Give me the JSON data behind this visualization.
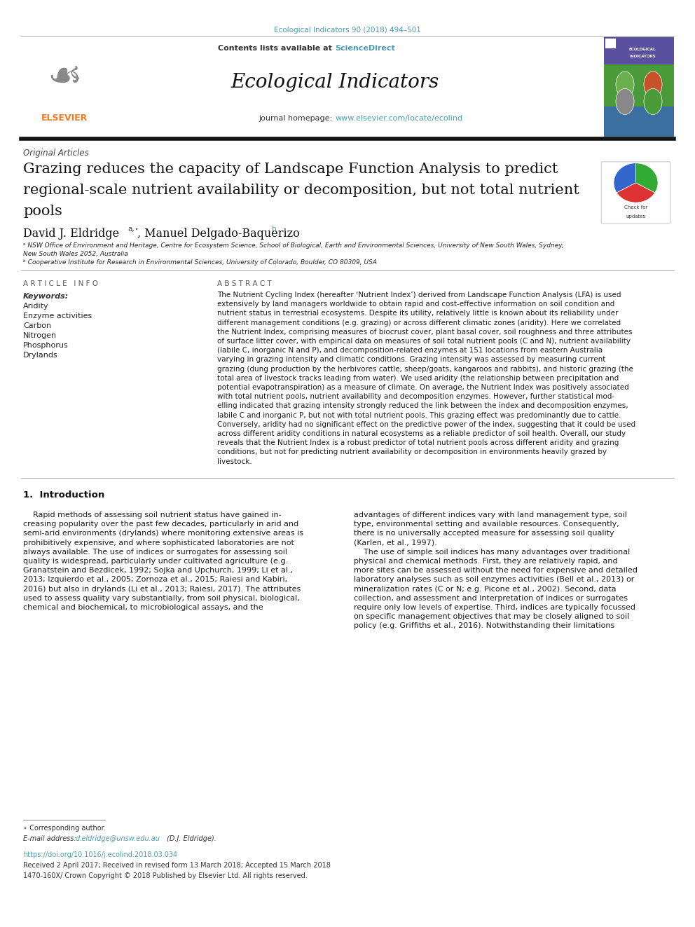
{
  "bg_color": "#ffffff",
  "page_width": 9.92,
  "page_height": 13.23,
  "dpi": 100,
  "journal_ref": "Ecological Indicators 90 (2018) 494–501",
  "journal_ref_color": "#4a9db5",
  "header_bg": "#e8e8e8",
  "contents_text": "Contents lists available at ",
  "sciencedirect_text": "ScienceDirect",
  "sciencedirect_color": "#4a9db5",
  "journal_title": "Ecological Indicators",
  "journal_homepage_label": "journal homepage: ",
  "journal_url": "www.elsevier.com/locate/ecolind",
  "journal_url_color": "#4a9db5",
  "article_type": "Original Articles",
  "paper_title_line1": "Grazing reduces the capacity of Landscape Function Analysis to predict",
  "paper_title_line2": "regional-scale nutrient availability or decomposition, but not total nutrient",
  "paper_title_line3": "pools",
  "authors_text": "David J. Eldridge",
  "authors_super_a": "a,⋆",
  "authors2_text": "Manuel Delgado-Baquerizo",
  "authors_super_b": "b",
  "affil_a_line1": "ᵃ NSW Office of Environment and Heritage, Centre for Ecosystem Science, School of Biological, Earth and Environmental Sciences, University of New South Wales, Sydney,",
  "affil_a_line2": "New South Wales 2052, Australia",
  "affil_b": "ᵇ Cooperative Institute for Research in Environmental Sciences, University of Colorado, Boulder, CO 80309, USA",
  "keywords_label": "Keywords:",
  "keywords": [
    "Aridity",
    "Enzyme activities",
    "Carbon",
    "Nitrogen",
    "Phosphorus",
    "Drylands"
  ],
  "abstract_lines": [
    "The Nutrient Cycling Index (hereafter ‘Nutrient Index’) derived from Landscape Function Analysis (LFA) is used",
    "extensively by land managers worldwide to obtain rapid and cost-effective information on soil condition and",
    "nutrient status in terrestrial ecosystems. Despite its utility, relatively little is known about its reliability under",
    "different management conditions (e.g. grazing) or across different climatic zones (aridity). Here we correlated",
    "the Nutrient Index, comprising measures of biocrust cover, plant basal cover, soil roughness and three attributes",
    "of surface litter cover, with empirical data on measures of soil total nutrient pools (C and N), nutrient availability",
    "(labile C, inorganic N and P), and decomposition-related enzymes at 151 locations from eastern Australia",
    "varying in grazing intensity and climatic conditions. Grazing intensity was assessed by measuring current",
    "grazing (dung production by the herbivores cattle, sheep/goats, kangaroos and rabbits), and historic grazing (the",
    "total area of livestock tracks leading from water). We used aridity (the relationship between precipitation and",
    "potential evapotranspiration) as a measure of climate. On average, the Nutrient Index was positively associated",
    "with total nutrient pools, nutrient availability and decomposition enzymes. However, further statistical mod-",
    "elling indicated that grazing intensity strongly reduced the link between the index and decomposition enzymes,",
    "labile C and inorganic P, but not with total nutrient pools. This grazing effect was predominantly due to cattle.",
    "Conversely, aridity had no significant effect on the predictive power of the index, suggesting that it could be used",
    "across different aridity conditions in natural ecosystems as a reliable predictor of soil health. Overall, our study",
    "reveals that the Nutrient Index is a robust predictor of total nutrient pools across different aridity and grazing",
    "conditions, but not for predicting nutrient availability or decomposition in environments heavily grazed by",
    "livestock."
  ],
  "intro_heading": "1.  Introduction",
  "intro_col1_lines": [
    "    Rapid methods of assessing soil nutrient status have gained in-",
    "creasing popularity over the past few decades, particularly in arid and",
    "semi-arid environments (drylands) where monitoring extensive areas is",
    "prohibitively expensive, and where sophisticated laboratories are not",
    "always available. The use of indices or surrogates for assessing soil",
    "quality is widespread, particularly under cultivated agriculture (e.g.",
    "Granatstein and Bezdicek, 1992; Sojka and Upchurch, 1999; Li et al.,",
    "2013; Izquierdo et al., 2005; Zornoza et al., 2015; Raiesi and Kabiri,",
    "2016) but also in drylands (Li et al., 2013; Raiesi, 2017). The attributes",
    "used to assess quality vary substantially, from soil physical, biological,",
    "chemical and biochemical, to microbiological assays, and the"
  ],
  "intro_col2_lines": [
    "advantages of different indices vary with land management type, soil",
    "type, environmental setting and available resources. Consequently,",
    "there is no universally accepted measure for assessing soil quality",
    "(Karlen, et al., 1997).",
    "    The use of simple soil indices has many advantages over traditional",
    "physical and chemical methods. First, they are relatively rapid, and",
    "more sites can be assessed without the need for expensive and detailed",
    "laboratory analyses such as soil enzymes activities (Bell et al., 2013) or",
    "mineralization rates (C or N; e.g. Picone et al., 2002). Second, data",
    "collection, and assessment and interpretation of indices or surrogates",
    "require only low levels of expertise. Third, indices are typically focussed",
    "on specific management objectives that may be closely aligned to soil",
    "policy (e.g. Griffiths et al., 2016). Notwithstanding their limitations"
  ],
  "footnote_star": "⋆ Corresponding author.",
  "footnote_email_label": "E-mail address: ",
  "footnote_email": "d.eldridge@unsw.edu.au",
  "footnote_email_color": "#4a9db5",
  "footnote_email_suffix": " (D.J. Eldridge).",
  "footnote_doi": "https://doi.org/10.1016/j.ecolind.2018.03.034",
  "footnote_doi_color": "#4a9db5",
  "footnote_received": "Received 2 April 2017; Received in revised form 13 March 2018; Accepted 15 March 2018",
  "footnote_rights": "1470-160X/ Crown Copyright © 2018 Published by Elsevier Ltd. All rights reserved.",
  "elsevier_orange": "#F47920",
  "link_color": "#4a9db5",
  "text_color": "#1a1a1a",
  "gray_text": "#444444"
}
